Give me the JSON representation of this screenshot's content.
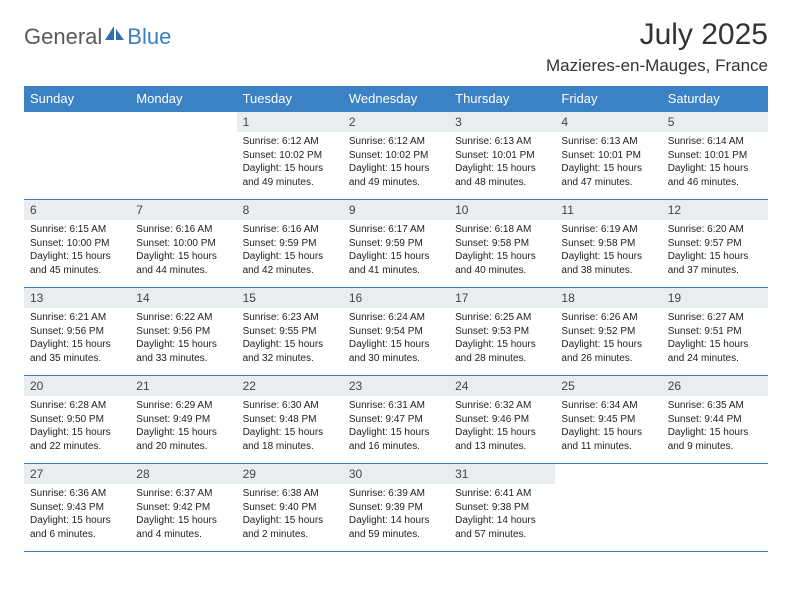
{
  "brand": {
    "part1": "General",
    "part2": "Blue"
  },
  "title": "July 2025",
  "location": "Mazieres-en-Mauges, France",
  "colors": {
    "header_bg": "#3b82c4",
    "header_text": "#ffffff",
    "daynum_bg": "#e9edf0",
    "border": "#3b82c4",
    "logo_gray": "#5a5a5a",
    "logo_blue": "#3b7fc4"
  },
  "day_headers": [
    "Sunday",
    "Monday",
    "Tuesday",
    "Wednesday",
    "Thursday",
    "Friday",
    "Saturday"
  ],
  "weeks": [
    [
      null,
      null,
      {
        "n": "1",
        "sr": "6:12 AM",
        "ss": "10:02 PM",
        "dl": "15 hours and 49 minutes."
      },
      {
        "n": "2",
        "sr": "6:12 AM",
        "ss": "10:02 PM",
        "dl": "15 hours and 49 minutes."
      },
      {
        "n": "3",
        "sr": "6:13 AM",
        "ss": "10:01 PM",
        "dl": "15 hours and 48 minutes."
      },
      {
        "n": "4",
        "sr": "6:13 AM",
        "ss": "10:01 PM",
        "dl": "15 hours and 47 minutes."
      },
      {
        "n": "5",
        "sr": "6:14 AM",
        "ss": "10:01 PM",
        "dl": "15 hours and 46 minutes."
      }
    ],
    [
      {
        "n": "6",
        "sr": "6:15 AM",
        "ss": "10:00 PM",
        "dl": "15 hours and 45 minutes."
      },
      {
        "n": "7",
        "sr": "6:16 AM",
        "ss": "10:00 PM",
        "dl": "15 hours and 44 minutes."
      },
      {
        "n": "8",
        "sr": "6:16 AM",
        "ss": "9:59 PM",
        "dl": "15 hours and 42 minutes."
      },
      {
        "n": "9",
        "sr": "6:17 AM",
        "ss": "9:59 PM",
        "dl": "15 hours and 41 minutes."
      },
      {
        "n": "10",
        "sr": "6:18 AM",
        "ss": "9:58 PM",
        "dl": "15 hours and 40 minutes."
      },
      {
        "n": "11",
        "sr": "6:19 AM",
        "ss": "9:58 PM",
        "dl": "15 hours and 38 minutes."
      },
      {
        "n": "12",
        "sr": "6:20 AM",
        "ss": "9:57 PM",
        "dl": "15 hours and 37 minutes."
      }
    ],
    [
      {
        "n": "13",
        "sr": "6:21 AM",
        "ss": "9:56 PM",
        "dl": "15 hours and 35 minutes."
      },
      {
        "n": "14",
        "sr": "6:22 AM",
        "ss": "9:56 PM",
        "dl": "15 hours and 33 minutes."
      },
      {
        "n": "15",
        "sr": "6:23 AM",
        "ss": "9:55 PM",
        "dl": "15 hours and 32 minutes."
      },
      {
        "n": "16",
        "sr": "6:24 AM",
        "ss": "9:54 PM",
        "dl": "15 hours and 30 minutes."
      },
      {
        "n": "17",
        "sr": "6:25 AM",
        "ss": "9:53 PM",
        "dl": "15 hours and 28 minutes."
      },
      {
        "n": "18",
        "sr": "6:26 AM",
        "ss": "9:52 PM",
        "dl": "15 hours and 26 minutes."
      },
      {
        "n": "19",
        "sr": "6:27 AM",
        "ss": "9:51 PM",
        "dl": "15 hours and 24 minutes."
      }
    ],
    [
      {
        "n": "20",
        "sr": "6:28 AM",
        "ss": "9:50 PM",
        "dl": "15 hours and 22 minutes."
      },
      {
        "n": "21",
        "sr": "6:29 AM",
        "ss": "9:49 PM",
        "dl": "15 hours and 20 minutes."
      },
      {
        "n": "22",
        "sr": "6:30 AM",
        "ss": "9:48 PM",
        "dl": "15 hours and 18 minutes."
      },
      {
        "n": "23",
        "sr": "6:31 AM",
        "ss": "9:47 PM",
        "dl": "15 hours and 16 minutes."
      },
      {
        "n": "24",
        "sr": "6:32 AM",
        "ss": "9:46 PM",
        "dl": "15 hours and 13 minutes."
      },
      {
        "n": "25",
        "sr": "6:34 AM",
        "ss": "9:45 PM",
        "dl": "15 hours and 11 minutes."
      },
      {
        "n": "26",
        "sr": "6:35 AM",
        "ss": "9:44 PM",
        "dl": "15 hours and 9 minutes."
      }
    ],
    [
      {
        "n": "27",
        "sr": "6:36 AM",
        "ss": "9:43 PM",
        "dl": "15 hours and 6 minutes."
      },
      {
        "n": "28",
        "sr": "6:37 AM",
        "ss": "9:42 PM",
        "dl": "15 hours and 4 minutes."
      },
      {
        "n": "29",
        "sr": "6:38 AM",
        "ss": "9:40 PM",
        "dl": "15 hours and 2 minutes."
      },
      {
        "n": "30",
        "sr": "6:39 AM",
        "ss": "9:39 PM",
        "dl": "14 hours and 59 minutes."
      },
      {
        "n": "31",
        "sr": "6:41 AM",
        "ss": "9:38 PM",
        "dl": "14 hours and 57 minutes."
      },
      null,
      null
    ]
  ],
  "labels": {
    "sunrise": "Sunrise: ",
    "sunset": "Sunset: ",
    "daylight": "Daylight: "
  }
}
